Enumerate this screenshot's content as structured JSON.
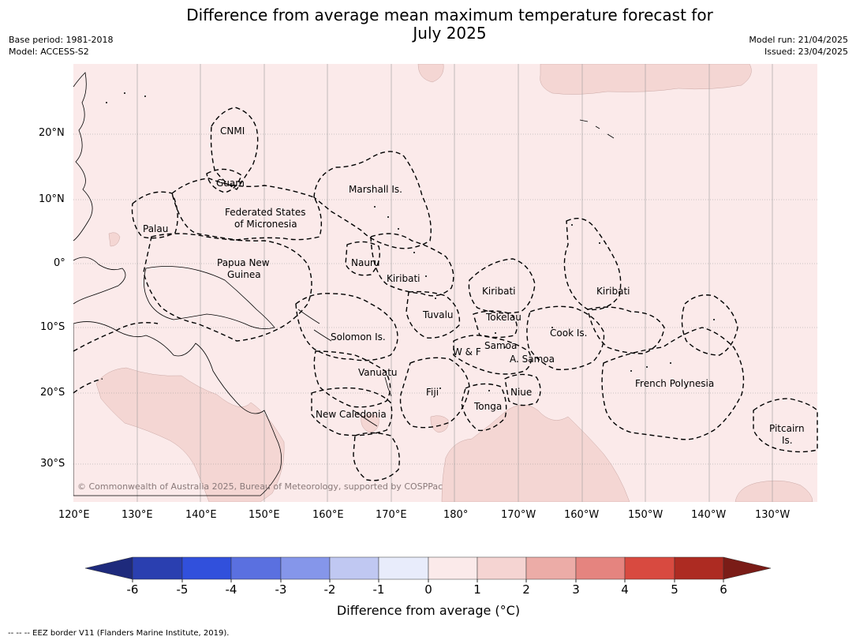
{
  "title_line1": "Difference from average mean maximum temperature forecast for",
  "title_line2": "July 2025",
  "meta_left": {
    "base_period": "Base period: 1981-2018",
    "model": "Model: ACCESS-S2"
  },
  "meta_right": {
    "model_run": "Model run: 21/04/2025",
    "issued": "Issued: 23/04/2025"
  },
  "map": {
    "lat_labels": [
      "20°N",
      "10°N",
      "0°",
      "10°S",
      "20°S",
      "30°S"
    ],
    "lon_labels": [
      "120°E",
      "130°E",
      "140°E",
      "150°E",
      "160°E",
      "170°E",
      "180°",
      "170°W",
      "160°W",
      "150°W",
      "140°W",
      "130°W"
    ],
    "copyright": "© Commonwealth of Australia 2025, Bureau of Meteorology, supported by COSPPac",
    "regions": [
      {
        "id": "cnmi",
        "text": "CNMI"
      },
      {
        "id": "guam",
        "text": "Guam"
      },
      {
        "id": "marshall",
        "text": "Marshall Is."
      },
      {
        "id": "fsm1",
        "text": "Federated States"
      },
      {
        "id": "fsm2",
        "text": "of Micronesia"
      },
      {
        "id": "palau",
        "text": "Palau"
      },
      {
        "id": "png1",
        "text": "Papua New"
      },
      {
        "id": "png2",
        "text": "Guinea"
      },
      {
        "id": "nauru",
        "text": "Nauru"
      },
      {
        "id": "kiribati_w",
        "text": "Kiribati"
      },
      {
        "id": "kiribati_c",
        "text": "Kiribati"
      },
      {
        "id": "kiribati_e",
        "text": "Kiribati"
      },
      {
        "id": "tuvalu",
        "text": "Tuvalu"
      },
      {
        "id": "tokelau",
        "text": "Tokelau"
      },
      {
        "id": "cook",
        "text": "Cook Is."
      },
      {
        "id": "solomon",
        "text": "Solomon Is."
      },
      {
        "id": "samoa",
        "text": "Samoa"
      },
      {
        "id": "wf",
        "text": "W & F"
      },
      {
        "id": "asamoa",
        "text": "A. Samoa"
      },
      {
        "id": "vanuatu",
        "text": "Vanuatu"
      },
      {
        "id": "fiji",
        "text": "Fiji"
      },
      {
        "id": "niue",
        "text": "Niue"
      },
      {
        "id": "tonga",
        "text": "Tonga"
      },
      {
        "id": "frpoly",
        "text": "French Polynesia"
      },
      {
        "id": "newcal",
        "text": "New Caledonia"
      },
      {
        "id": "pitcairn1",
        "text": "Pitcairn"
      },
      {
        "id": "pitcairn2",
        "text": "Is."
      }
    ]
  },
  "colorbar": {
    "ticks": [
      "-6",
      "-5",
      "-4",
      "-3",
      "-2",
      "-1",
      "0",
      "1",
      "2",
      "3",
      "4",
      "5",
      "6"
    ],
    "colors": [
      "#2a3fb0",
      "#3150dc",
      "#5a70e0",
      "#8596ea",
      "#c0c8f2",
      "#e8ecfb",
      "#fbeaea",
      "#f5d4d2",
      "#ecaca7",
      "#e5847f",
      "#d84a40",
      "#ad2b22"
    ],
    "under_color": "#1e2a7c",
    "over_color": "#7a1c17",
    "title": "Difference from average (°C)"
  },
  "footnote": "--  --  -- EEZ border V11 (Flanders Marine Institute, 2019).",
  "shading": {
    "background_class": "0 to 1",
    "patch_class": "1 to 2",
    "background_color": "#fbeaea",
    "patch_color": "#f4d6d3"
  }
}
